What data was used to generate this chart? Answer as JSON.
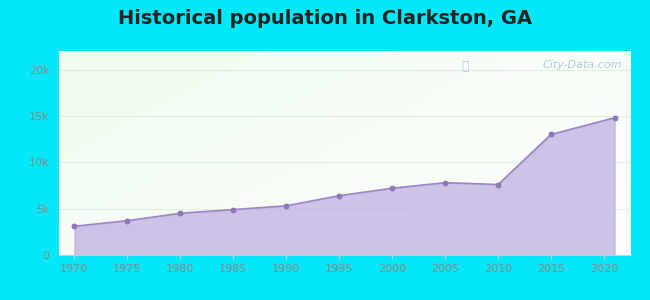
{
  "title": "Historical population in Clarkston, GA",
  "title_fontsize": 14,
  "title_fontweight": "bold",
  "years": [
    1970,
    1975,
    1980,
    1985,
    1990,
    1995,
    2000,
    2005,
    2010,
    2015,
    2021
  ],
  "population": [
    3100,
    3700,
    4500,
    4900,
    5300,
    6400,
    7200,
    7800,
    7600,
    13000,
    14800
  ],
  "fill_color": "#c0aee0",
  "fill_alpha": 0.75,
  "line_color": "#9b85c8",
  "marker_color": "#9078b8",
  "marker_size": 18,
  "outer_bg": "#00e8f8",
  "plot_bg_colors": [
    "#d4efd4",
    "#e8f8e8",
    "#f4faf4",
    "#fafcff"
  ],
  "ylim": [
    0,
    22000
  ],
  "yticks": [
    0,
    5000,
    10000,
    15000,
    20000
  ],
  "ytick_labels": [
    "0",
    "5k",
    "10k",
    "15k",
    "20k"
  ],
  "xlim": [
    1968.5,
    2022.5
  ],
  "xticks": [
    1970,
    1975,
    1980,
    1985,
    1990,
    1995,
    2000,
    2005,
    2010,
    2015,
    2020
  ],
  "grid_color": "#e0eee0",
  "watermark_text": "City-Data.com",
  "watermark_color": "#90b8c8",
  "watermark_alpha": 0.7,
  "tick_color": "#888888",
  "tick_fontsize": 8,
  "spine_color": "#cccccc"
}
